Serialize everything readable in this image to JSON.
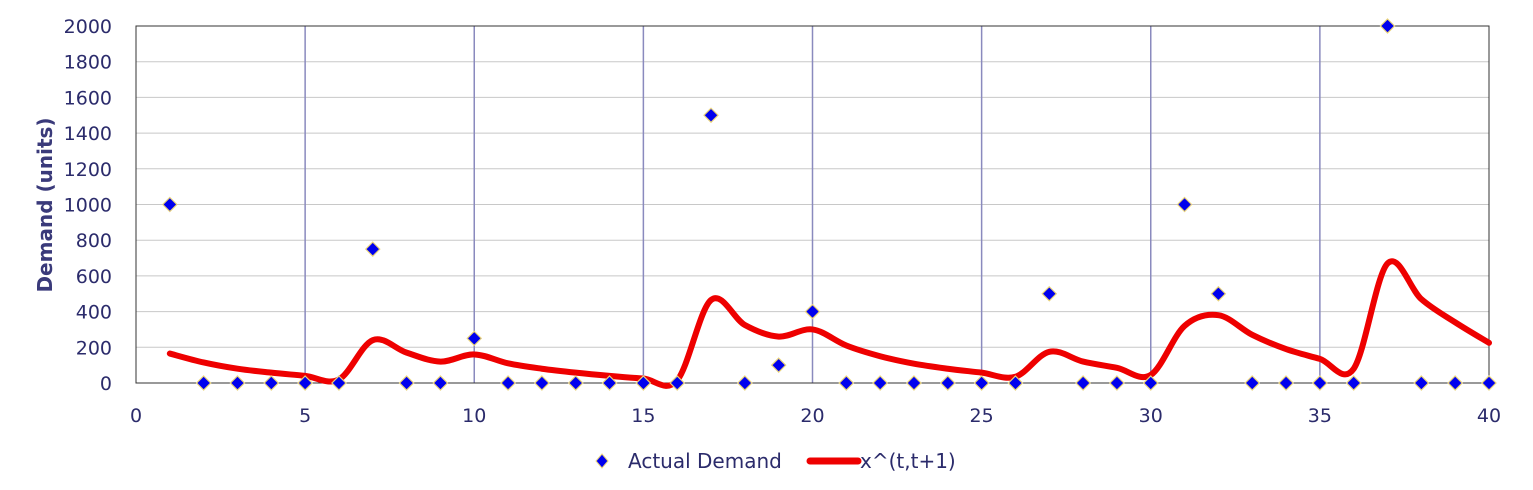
{
  "chart_data": {
    "type": "scatter",
    "title": "",
    "xlabel": "",
    "ylabel": "Demand (units)",
    "xlim": [
      0,
      40
    ],
    "ylim": [
      0,
      2000
    ],
    "x_ticks": [
      0,
      5,
      10,
      15,
      20,
      25,
      30,
      35,
      40
    ],
    "y_ticks": [
      0,
      200,
      400,
      600,
      800,
      1000,
      1200,
      1400,
      1600,
      1800,
      2000
    ],
    "grid": true,
    "legend_position": "bottom",
    "series": [
      {
        "name": "Actual Demand",
        "kind": "scatter",
        "color": "#0000ee",
        "x": [
          1,
          2,
          3,
          4,
          5,
          6,
          7,
          8,
          9,
          10,
          11,
          12,
          13,
          14,
          15,
          16,
          17,
          18,
          19,
          20,
          21,
          22,
          23,
          24,
          25,
          26,
          27,
          28,
          29,
          30,
          31,
          32,
          33,
          34,
          35,
          36,
          37,
          38,
          39,
          40
        ],
        "y": [
          1000,
          0,
          0,
          0,
          0,
          0,
          750,
          0,
          0,
          250,
          0,
          0,
          0,
          0,
          0,
          0,
          1500,
          0,
          100,
          400,
          0,
          0,
          0,
          0,
          0,
          0,
          500,
          0,
          0,
          0,
          1000,
          500,
          0,
          0,
          0,
          0,
          2000,
          0,
          0,
          0
        ]
      },
      {
        "name": "x^(t,t+1)",
        "kind": "line",
        "color": "#ee0000",
        "x": [
          1,
          2,
          3,
          4,
          5,
          6,
          7,
          8,
          9,
          10,
          11,
          12,
          13,
          14,
          15,
          16,
          17,
          18,
          19,
          20,
          21,
          22,
          23,
          24,
          25,
          26,
          27,
          28,
          29,
          30,
          31,
          32,
          33,
          34,
          35,
          36,
          37,
          38,
          39,
          40
        ],
        "y": [
          165,
          115,
          80,
          58,
          40,
          20,
          240,
          170,
          120,
          160,
          110,
          80,
          58,
          40,
          25,
          15,
          465,
          325,
          260,
          300,
          210,
          150,
          108,
          80,
          58,
          35,
          175,
          120,
          85,
          45,
          320,
          380,
          270,
          190,
          135,
          80,
          670,
          470,
          340,
          225
        ]
      }
    ]
  }
}
